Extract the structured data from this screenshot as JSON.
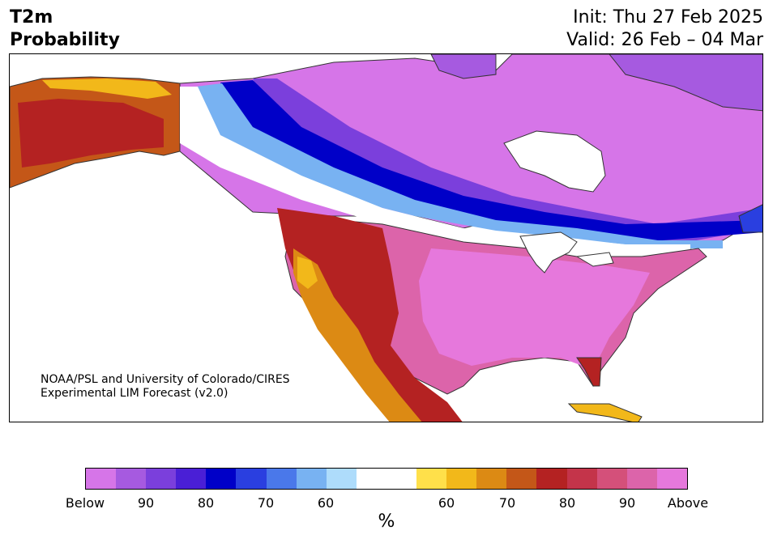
{
  "title": {
    "line1": "T2m",
    "line2": "Probability"
  },
  "subtitle": {
    "init": "Init: Thu 27 Feb 2025",
    "valid": "Valid: 26 Feb – 04 Mar"
  },
  "credit": {
    "line1": "NOAA/PSL and University of Colorado/CIRES",
    "line2": "Experimental LIM Forecast (v2.0)"
  },
  "colorbar": {
    "colors": [
      "#d675e8",
      "#a65ae0",
      "#7b3fdc",
      "#4a1fd6",
      "#0000c8",
      "#2a3fe0",
      "#4a78ea",
      "#78b2f2",
      "#aedcfb",
      "#ffffff",
      "#ffffff",
      "#ffe04a",
      "#f2b81a",
      "#dc8a14",
      "#c45718",
      "#b42222",
      "#c4344a",
      "#d4507a",
      "#dc64aa",
      "#e678dc"
    ],
    "ticks": [
      "Below",
      "90",
      "80",
      "70",
      "60",
      "60",
      "70",
      "80",
      "90",
      "Above"
    ],
    "unit": "%"
  }
}
